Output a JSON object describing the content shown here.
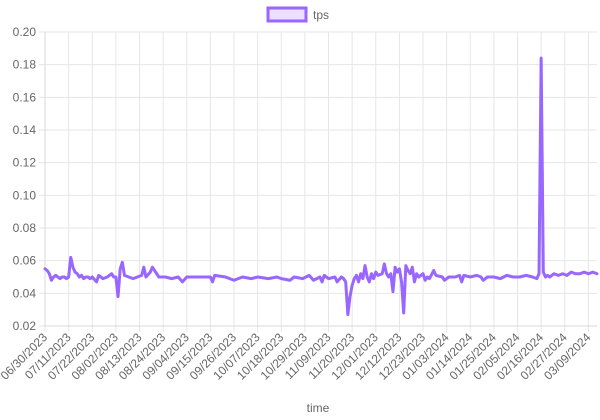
{
  "chart_data": {
    "type": "line",
    "legend": {
      "label": "tps",
      "position": "top",
      "color": "#9966ff",
      "fill": "#ebe0ff"
    },
    "xlabel": "time",
    "ylabel": "",
    "ylim": [
      0.02,
      0.2
    ],
    "y_ticks": [
      "0.20",
      "0.18",
      "0.16",
      "0.14",
      "0.12",
      "0.10",
      "0.08",
      "0.06",
      "0.04",
      "0.02"
    ],
    "x_tick_labels": [
      "06/30/2023",
      "07/11/2023",
      "07/22/2023",
      "08/02/2023",
      "08/13/2023",
      "08/24/2023",
      "09/04/2023",
      "09/15/2023",
      "09/26/2023",
      "10/07/2023",
      "10/18/2023",
      "10/29/2023",
      "11/09/2023",
      "11/20/2023",
      "12/01/2023",
      "12/12/2023",
      "12/23/2023",
      "01/03/2024",
      "01/14/2024",
      "01/25/2024",
      "02/05/2024",
      "02/16/2024",
      "02/27/2024",
      "03/09/2024"
    ],
    "grid": true,
    "series": [
      {
        "name": "tps",
        "color": "#9966ff",
        "points": [
          [
            "2023-06-30",
            0.055
          ],
          [
            "2023-07-01",
            0.054
          ],
          [
            "2023-07-02",
            0.052
          ],
          [
            "2023-07-03",
            0.048
          ],
          [
            "2023-07-04",
            0.05
          ],
          [
            "2023-07-05",
            0.051
          ],
          [
            "2023-07-06",
            0.05
          ],
          [
            "2023-07-07",
            0.049
          ],
          [
            "2023-07-08",
            0.05
          ],
          [
            "2023-07-09",
            0.05
          ],
          [
            "2023-07-10",
            0.049
          ],
          [
            "2023-07-11",
            0.05
          ],
          [
            "2023-07-12",
            0.062
          ],
          [
            "2023-07-13",
            0.056
          ],
          [
            "2023-07-14",
            0.053
          ],
          [
            "2023-07-15",
            0.052
          ],
          [
            "2023-07-16",
            0.05
          ],
          [
            "2023-07-17",
            0.051
          ],
          [
            "2023-07-18",
            0.049
          ],
          [
            "2023-07-19",
            0.05
          ],
          [
            "2023-07-20",
            0.05
          ],
          [
            "2023-07-21",
            0.049
          ],
          [
            "2023-07-22",
            0.05
          ],
          [
            "2023-07-24",
            0.047
          ],
          [
            "2023-07-25",
            0.051
          ],
          [
            "2023-07-27",
            0.049
          ],
          [
            "2023-07-29",
            0.05
          ],
          [
            "2023-07-31",
            0.052
          ],
          [
            "2023-08-01",
            0.05
          ],
          [
            "2023-08-02",
            0.05
          ],
          [
            "2023-08-03",
            0.038
          ],
          [
            "2023-08-04",
            0.055
          ],
          [
            "2023-08-05",
            0.059
          ],
          [
            "2023-08-06",
            0.051
          ],
          [
            "2023-08-08",
            0.05
          ],
          [
            "2023-08-10",
            0.049
          ],
          [
            "2023-08-12",
            0.05
          ],
          [
            "2023-08-14",
            0.051
          ],
          [
            "2023-08-15",
            0.056
          ],
          [
            "2023-08-16",
            0.05
          ],
          [
            "2023-08-18",
            0.053
          ],
          [
            "2023-08-19",
            0.056
          ],
          [
            "2023-08-20",
            0.054
          ],
          [
            "2023-08-22",
            0.05
          ],
          [
            "2023-08-25",
            0.05
          ],
          [
            "2023-08-28",
            0.049
          ],
          [
            "2023-08-31",
            0.05
          ],
          [
            "2023-09-02",
            0.047
          ],
          [
            "2023-09-04",
            0.05
          ],
          [
            "2023-09-08",
            0.05
          ],
          [
            "2023-09-12",
            0.05
          ],
          [
            "2023-09-15",
            0.05
          ],
          [
            "2023-09-16",
            0.047
          ],
          [
            "2023-09-17",
            0.051
          ],
          [
            "2023-09-22",
            0.05
          ],
          [
            "2023-09-26",
            0.048
          ],
          [
            "2023-09-30",
            0.05
          ],
          [
            "2023-10-04",
            0.049
          ],
          [
            "2023-10-07",
            0.05
          ],
          [
            "2023-10-12",
            0.049
          ],
          [
            "2023-10-16",
            0.05
          ],
          [
            "2023-10-18",
            0.049
          ],
          [
            "2023-10-22",
            0.048
          ],
          [
            "2023-10-24",
            0.05
          ],
          [
            "2023-10-28",
            0.049
          ],
          [
            "2023-10-31",
            0.051
          ],
          [
            "2023-11-02",
            0.048
          ],
          [
            "2023-11-05",
            0.05
          ],
          [
            "2023-11-06",
            0.047
          ],
          [
            "2023-11-07",
            0.051
          ],
          [
            "2023-11-09",
            0.049
          ],
          [
            "2023-11-12",
            0.05
          ],
          [
            "2023-11-13",
            0.047
          ],
          [
            "2023-11-15",
            0.05
          ],
          [
            "2023-11-16",
            0.049
          ],
          [
            "2023-11-17",
            0.047
          ],
          [
            "2023-11-18",
            0.027
          ],
          [
            "2023-11-19",
            0.038
          ],
          [
            "2023-11-20",
            0.045
          ],
          [
            "2023-11-21",
            0.049
          ],
          [
            "2023-11-22",
            0.051
          ],
          [
            "2023-11-23",
            0.047
          ],
          [
            "2023-11-24",
            0.052
          ],
          [
            "2023-11-25",
            0.049
          ],
          [
            "2023-11-26",
            0.057
          ],
          [
            "2023-11-27",
            0.05
          ],
          [
            "2023-11-28",
            0.047
          ],
          [
            "2023-11-29",
            0.052
          ],
          [
            "2023-11-30",
            0.049
          ],
          [
            "2023-12-01",
            0.053
          ],
          [
            "2023-12-02",
            0.051
          ],
          [
            "2023-12-04",
            0.052
          ],
          [
            "2023-12-05",
            0.058
          ],
          [
            "2023-12-06",
            0.052
          ],
          [
            "2023-12-07",
            0.05
          ],
          [
            "2023-12-08",
            0.052
          ],
          [
            "2023-12-09",
            0.041
          ],
          [
            "2023-12-10",
            0.056
          ],
          [
            "2023-12-11",
            0.053
          ],
          [
            "2023-12-12",
            0.055
          ],
          [
            "2023-12-13",
            0.047
          ],
          [
            "2023-12-14",
            0.028
          ],
          [
            "2023-12-15",
            0.057
          ],
          [
            "2023-12-16",
            0.054
          ],
          [
            "2023-12-17",
            0.052
          ],
          [
            "2023-12-18",
            0.056
          ],
          [
            "2023-12-19",
            0.047
          ],
          [
            "2023-12-20",
            0.052
          ],
          [
            "2023-12-21",
            0.05
          ],
          [
            "2023-12-23",
            0.052
          ],
          [
            "2023-12-24",
            0.048
          ],
          [
            "2023-12-25",
            0.05
          ],
          [
            "2023-12-26",
            0.049
          ],
          [
            "2023-12-28",
            0.054
          ],
          [
            "2023-12-29",
            0.051
          ],
          [
            "2024-01-01",
            0.05
          ],
          [
            "2024-01-02",
            0.048
          ],
          [
            "2024-01-04",
            0.05
          ],
          [
            "2024-01-07",
            0.05
          ],
          [
            "2024-01-09",
            0.051
          ],
          [
            "2024-01-10",
            0.047
          ],
          [
            "2024-01-11",
            0.051
          ],
          [
            "2024-01-14",
            0.05
          ],
          [
            "2024-01-17",
            0.051
          ],
          [
            "2024-01-19",
            0.05
          ],
          [
            "2024-01-20",
            0.048
          ],
          [
            "2024-01-22",
            0.05
          ],
          [
            "2024-01-25",
            0.05
          ],
          [
            "2024-01-28",
            0.049
          ],
          [
            "2024-01-31",
            0.051
          ],
          [
            "2024-02-03",
            0.05
          ],
          [
            "2024-02-06",
            0.05
          ],
          [
            "2024-02-09",
            0.051
          ],
          [
            "2024-02-12",
            0.05
          ],
          [
            "2024-02-14",
            0.049
          ],
          [
            "2024-02-15",
            0.052
          ],
          [
            "2024-02-16",
            0.184
          ],
          [
            "2024-02-17",
            0.053
          ],
          [
            "2024-02-18",
            0.05
          ],
          [
            "2024-02-19",
            0.051
          ],
          [
            "2024-02-20",
            0.05
          ],
          [
            "2024-02-22",
            0.052
          ],
          [
            "2024-02-24",
            0.051
          ],
          [
            "2024-02-26",
            0.052
          ],
          [
            "2024-02-28",
            0.051
          ],
          [
            "2024-03-01",
            0.053
          ],
          [
            "2024-03-03",
            0.052
          ],
          [
            "2024-03-05",
            0.052
          ],
          [
            "2024-03-07",
            0.053
          ],
          [
            "2024-03-09",
            0.052
          ],
          [
            "2024-03-11",
            0.053
          ],
          [
            "2024-03-13",
            0.052
          ]
        ]
      }
    ]
  }
}
